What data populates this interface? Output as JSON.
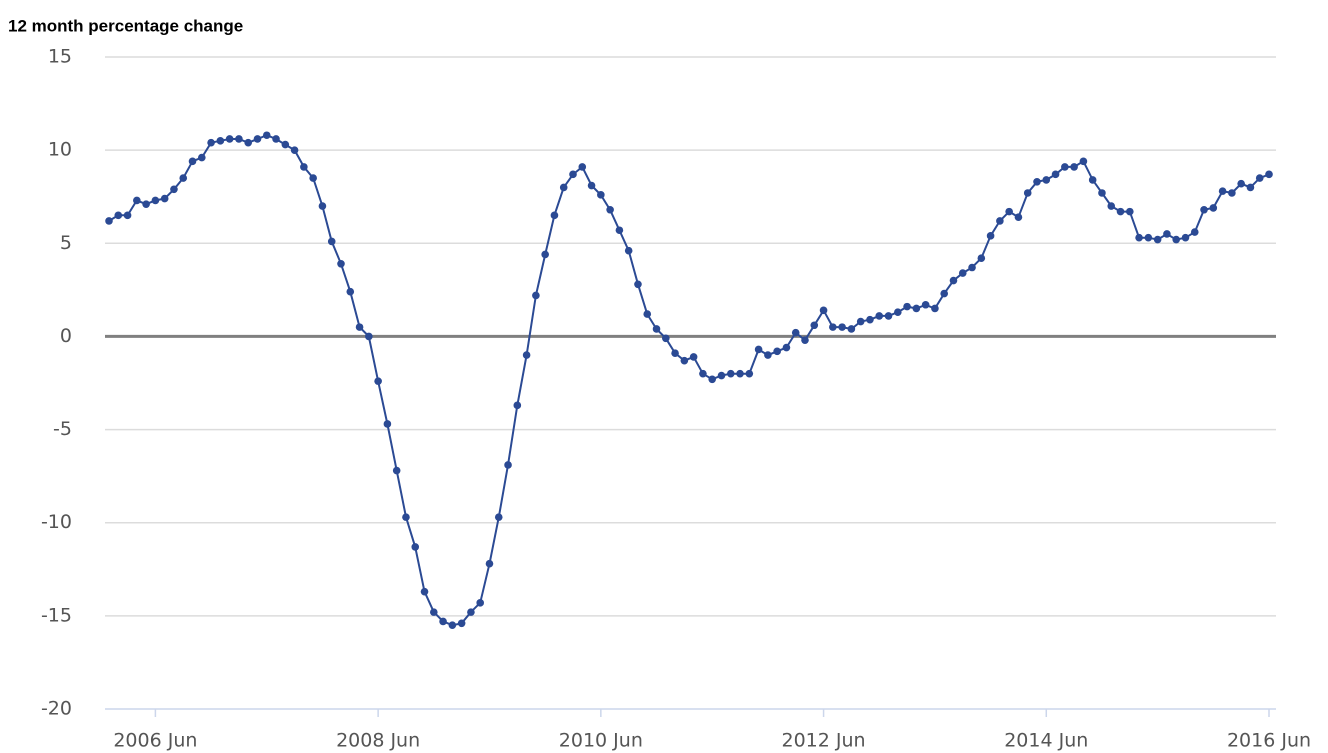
{
  "chart_data": {
    "type": "line",
    "title": "12 month percentage change",
    "x": [
      "2006-01",
      "2006-02",
      "2006-03",
      "2006-04",
      "2006-05",
      "2006-06",
      "2006-07",
      "2006-08",
      "2006-09",
      "2006-10",
      "2006-11",
      "2006-12",
      "2007-01",
      "2007-02",
      "2007-03",
      "2007-04",
      "2007-05",
      "2007-06",
      "2007-07",
      "2007-08",
      "2007-09",
      "2007-10",
      "2007-11",
      "2007-12",
      "2008-01",
      "2008-02",
      "2008-03",
      "2008-04",
      "2008-05",
      "2008-06",
      "2008-07",
      "2008-08",
      "2008-09",
      "2008-10",
      "2008-11",
      "2008-12",
      "2009-01",
      "2009-02",
      "2009-03",
      "2009-04",
      "2009-05",
      "2009-06",
      "2009-07",
      "2009-08",
      "2009-09",
      "2009-10",
      "2009-11",
      "2009-12",
      "2010-01",
      "2010-02",
      "2010-03",
      "2010-04",
      "2010-05",
      "2010-06",
      "2010-07",
      "2010-08",
      "2010-09",
      "2010-10",
      "2010-11",
      "2010-12",
      "2011-01",
      "2011-02",
      "2011-03",
      "2011-04",
      "2011-05",
      "2011-06",
      "2011-07",
      "2011-08",
      "2011-09",
      "2011-10",
      "2011-11",
      "2011-12",
      "2012-01",
      "2012-02",
      "2012-03",
      "2012-04",
      "2012-05",
      "2012-06",
      "2012-07",
      "2012-08",
      "2012-09",
      "2012-10",
      "2012-11",
      "2012-12",
      "2013-01",
      "2013-02",
      "2013-03",
      "2013-04",
      "2013-05",
      "2013-06",
      "2013-07",
      "2013-08",
      "2013-09",
      "2013-10",
      "2013-11",
      "2013-12",
      "2014-01",
      "2014-02",
      "2014-03",
      "2014-04",
      "2014-05",
      "2014-06",
      "2014-07",
      "2014-08",
      "2014-09",
      "2014-10",
      "2014-11",
      "2014-12",
      "2015-01",
      "2015-02",
      "2015-03",
      "2015-04",
      "2015-05",
      "2015-06",
      "2015-07",
      "2015-08",
      "2015-09",
      "2015-10",
      "2015-11",
      "2015-12",
      "2016-01",
      "2016-02",
      "2016-03",
      "2016-04",
      "2016-05",
      "2016-06"
    ],
    "series": [
      {
        "color": "#2b4a94",
        "values": [
          6.2,
          6.5,
          6.5,
          7.3,
          7.1,
          7.3,
          7.4,
          7.9,
          8.5,
          9.4,
          9.6,
          10.4,
          10.5,
          10.6,
          10.6,
          10.4,
          10.6,
          10.8,
          10.6,
          10.3,
          10.0,
          9.1,
          8.5,
          7.0,
          5.1,
          3.9,
          2.4,
          0.5,
          0.0,
          -2.4,
          -4.7,
          -7.2,
          -9.7,
          -11.3,
          -13.7,
          -14.8,
          -15.3,
          -15.5,
          -15.4,
          -14.8,
          -14.3,
          -12.2,
          -9.7,
          -6.9,
          -3.7,
          -1.0,
          2.2,
          4.4,
          6.5,
          8.0,
          8.7,
          9.1,
          8.1,
          7.6,
          6.8,
          5.7,
          4.6,
          2.8,
          1.2,
          0.4,
          -0.1,
          -0.9,
          -1.3,
          -1.1,
          -2.0,
          -2.3,
          -2.1,
          -2.0,
          -2.0,
          -2.0,
          -0.7,
          -1.0,
          -0.8,
          -0.6,
          0.2,
          -0.2,
          0.6,
          1.4,
          0.5,
          0.5,
          0.4,
          0.8,
          0.9,
          1.1,
          1.1,
          1.3,
          1.6,
          1.5,
          1.7,
          1.5,
          2.3,
          3.0,
          3.4,
          3.7,
          4.2,
          5.4,
          6.2,
          6.7,
          6.4,
          7.7,
          8.3,
          8.4,
          8.7,
          9.1,
          9.1,
          9.4,
          8.4,
          7.7,
          7.0,
          6.7,
          6.7,
          5.3,
          5.3,
          5.2,
          5.5,
          5.2,
          5.3,
          5.6,
          6.8,
          6.9,
          7.8,
          7.7,
          8.2,
          8.0,
          8.5,
          8.7
        ]
      }
    ],
    "xlim": [
      "2006-01",
      "2016-06"
    ],
    "xticks": [
      {
        "value": "2006-06",
        "label": "2006 Jun"
      },
      {
        "value": "2008-06",
        "label": "2008 Jun"
      },
      {
        "value": "2010-06",
        "label": "2010 Jun"
      },
      {
        "value": "2012-06",
        "label": "2012 Jun"
      },
      {
        "value": "2014-06",
        "label": "2014 Jun"
      },
      {
        "value": "2016-06",
        "label": "2016 Jun"
      }
    ],
    "ylim": [
      -20,
      15
    ],
    "yticks": [
      -20,
      -15,
      -10,
      -5,
      0,
      5,
      10,
      15
    ],
    "grid": true,
    "zero_line": true
  }
}
